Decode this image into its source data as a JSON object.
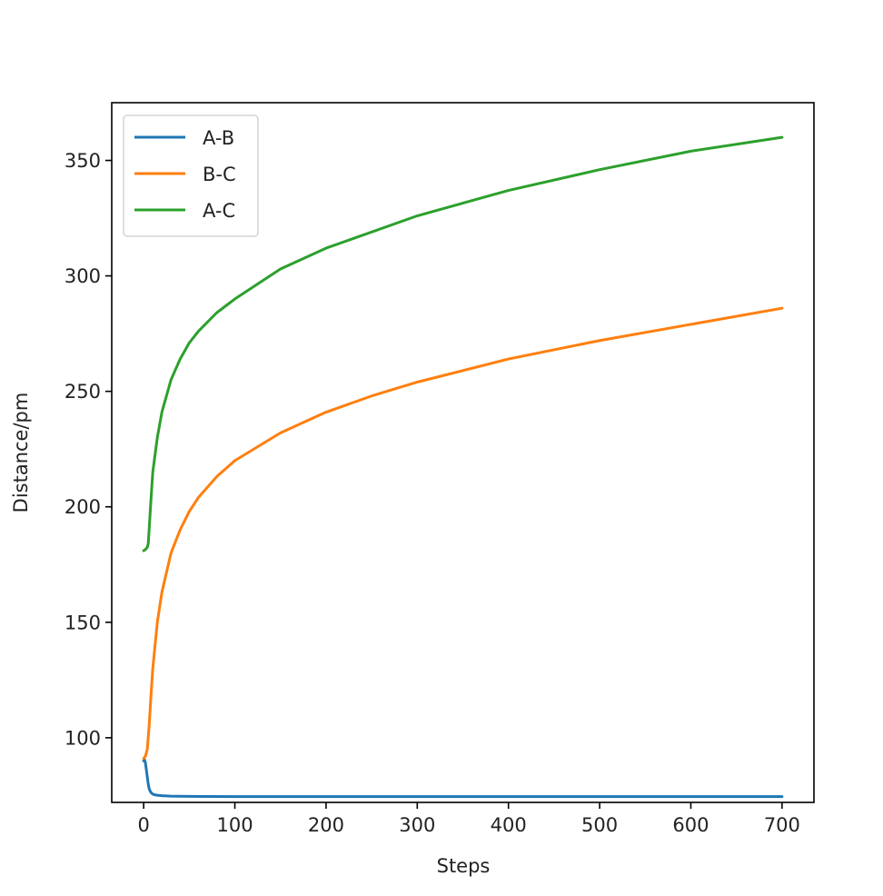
{
  "chart_data": {
    "type": "line",
    "xlabel": "Steps",
    "ylabel": "Distance/pm",
    "xlim": [
      -35,
      735
    ],
    "ylim": [
      72,
      375
    ],
    "xticks": [
      0,
      100,
      200,
      300,
      400,
      500,
      600,
      700
    ],
    "yticks": [
      100,
      150,
      200,
      250,
      300,
      350
    ],
    "grid": false,
    "legend": "top-left",
    "series": [
      {
        "name": "A-B",
        "color": "#1f77b4",
        "x": [
          0,
          1,
          2,
          3,
          4,
          5,
          6,
          7,
          8,
          10,
          12,
          15,
          20,
          30,
          50,
          100,
          200,
          300,
          400,
          500,
          600,
          700
        ],
        "y": [
          90,
          90.5,
          89,
          86,
          83,
          80,
          78,
          77,
          76.3,
          75.6,
          75.3,
          75.1,
          74.9,
          74.7,
          74.6,
          74.5,
          74.5,
          74.5,
          74.5,
          74.5,
          74.5,
          74.5
        ]
      },
      {
        "name": "B-C",
        "color": "#ff7f0e",
        "x": [
          0,
          2,
          4,
          6,
          8,
          10,
          15,
          20,
          30,
          40,
          50,
          60,
          80,
          100,
          150,
          200,
          250,
          300,
          400,
          500,
          600,
          700
        ],
        "y": [
          91,
          92,
          95,
          105,
          118,
          130,
          150,
          163,
          180,
          190,
          198,
          204,
          213,
          220,
          232,
          241,
          248,
          254,
          264,
          272,
          279,
          286
        ]
      },
      {
        "name": "A-C",
        "color": "#2ca02c",
        "x": [
          0,
          2,
          4,
          5,
          6,
          8,
          10,
          15,
          20,
          30,
          40,
          50,
          60,
          80,
          100,
          150,
          200,
          250,
          300,
          400,
          500,
          600,
          700
        ],
        "y": [
          181,
          181.5,
          182.5,
          184,
          190,
          203,
          215,
          230,
          241,
          255,
          264,
          271,
          276,
          284,
          290,
          303,
          312,
          319,
          326,
          337,
          346,
          354,
          360
        ]
      }
    ]
  }
}
